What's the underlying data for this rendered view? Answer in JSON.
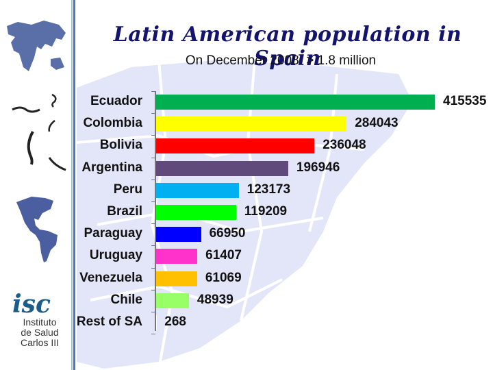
{
  "title": "Latin American population in Spain",
  "subtitle": "On December 2008: > 1.8 million",
  "logo": {
    "mark": "isc",
    "lines": [
      "Instituto",
      "de Salud",
      "Carlos III"
    ]
  },
  "chart_data": {
    "type": "bar",
    "orientation": "horizontal",
    "title": "Latin American population in Spain",
    "subtitle": "On December 2008: > 1.8 million",
    "xlabel": "",
    "ylabel": "",
    "grid": false,
    "legend": null,
    "data_labels": true,
    "categories": [
      "Ecuador",
      "Colombia",
      "Bolivia",
      "Argentina",
      "Peru",
      "Brazil",
      "Paraguay",
      "Uruguay",
      "Venezuela",
      "Chile",
      "Rest of SA"
    ],
    "values": [
      415535,
      284043,
      236048,
      196946,
      123173,
      119209,
      66950,
      61407,
      61069,
      48939,
      268
    ],
    "labels": [
      "415535",
      "284043",
      "236048",
      "196946",
      "123173",
      "119209",
      "66950",
      "61407",
      "61069",
      "48939",
      "268"
    ],
    "colors": [
      "#00b050",
      "#ffff00",
      "#ff0000",
      "#604a7b",
      "#00b0f0",
      "#00ff00",
      "#0000ff",
      "#ff33cc",
      "#ffc000",
      "#99ff66",
      "#ffffff"
    ],
    "xlim": [
      0,
      415535
    ]
  }
}
